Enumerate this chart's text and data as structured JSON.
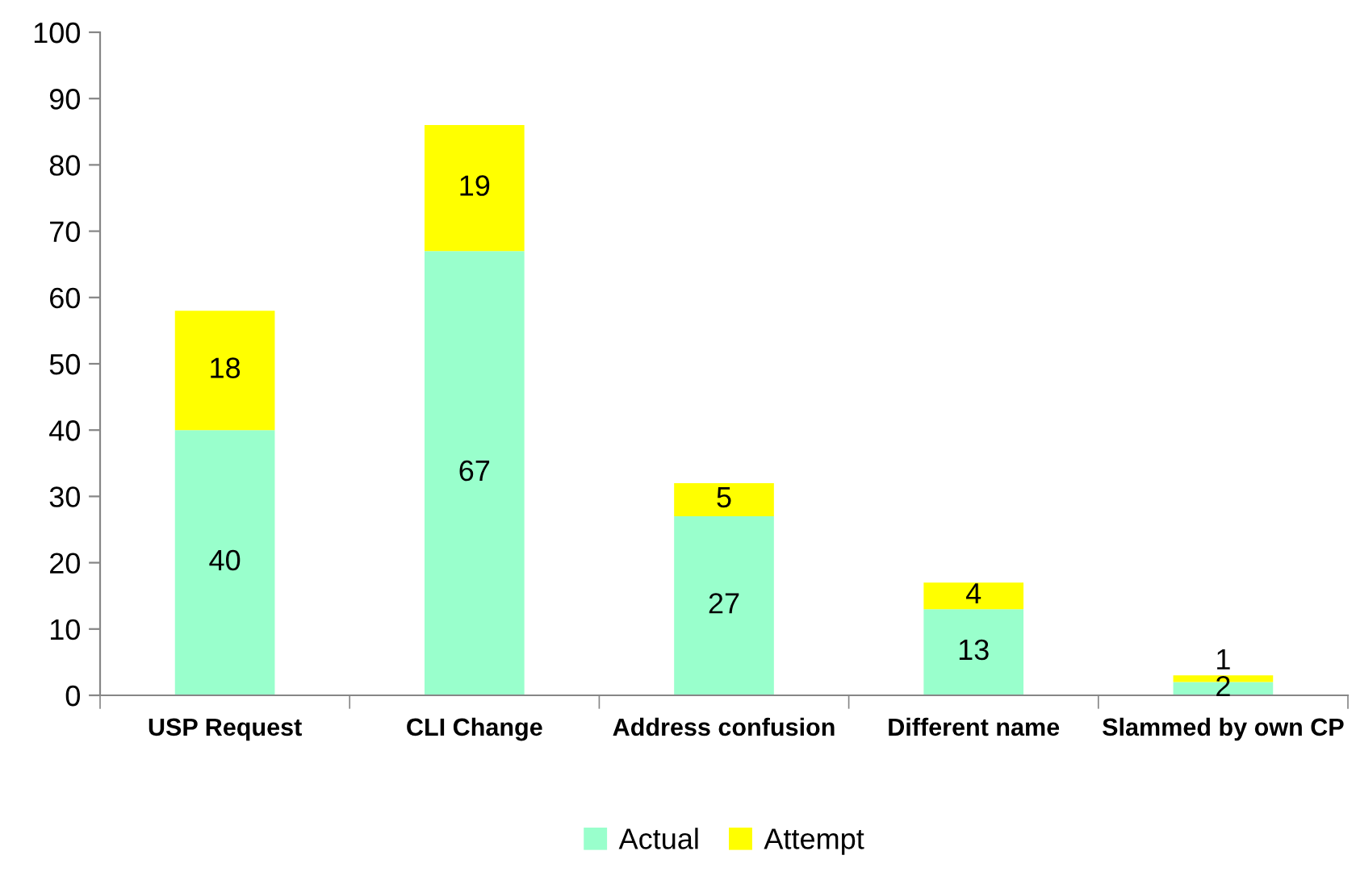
{
  "chart_data": {
    "type": "bar",
    "stacked": true,
    "categories": [
      "USP Request",
      "CLI Change",
      "Address confusion",
      "Different name",
      "Slammed by own CP"
    ],
    "series": [
      {
        "name": "Actual",
        "color": "#99ffcc",
        "values": [
          40,
          67,
          27,
          13,
          2
        ]
      },
      {
        "name": "Attempt",
        "color": "#ffff00",
        "values": [
          18,
          19,
          5,
          4,
          1
        ]
      }
    ],
    "ylim": [
      0,
      100
    ],
    "yticks": [
      0,
      10,
      20,
      30,
      40,
      50,
      60,
      70,
      80,
      90,
      100
    ],
    "grid": false,
    "legend": "bottom",
    "data_labels": true
  }
}
